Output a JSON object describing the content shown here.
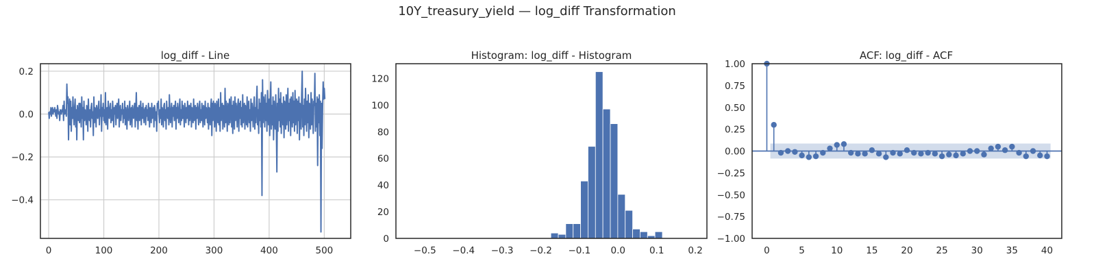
{
  "figure": {
    "suptitle": "10Y_treasury_yield — log_diff Transformation"
  },
  "colors": {
    "primary": "#4c72b0",
    "ci_band": "#4c72b0",
    "grid": "#cccccc",
    "axis": "#262626",
    "text": "#262626"
  },
  "chart_data": [
    {
      "type": "line",
      "title": "log_diff - Line",
      "xlabel": "",
      "ylabel": "",
      "xlim": [
        -15,
        548
      ],
      "ylim": [
        -0.58,
        0.235
      ],
      "xticks": [
        0,
        100,
        200,
        300,
        400,
        500
      ],
      "yticks": [
        -0.4,
        -0.2,
        0.0,
        0.2
      ],
      "ytick_labels": [
        "−0.4",
        "−0.2",
        "0.0",
        "0.2"
      ],
      "grid": true,
      "series": [
        {
          "values": [
            0.01,
            -0.02,
            0.01,
            0.0,
            0.03,
            -0.01,
            0.02,
            0.03,
            0.0,
            0.02,
            0.01,
            0.03,
            0.01,
            -0.01,
            0.02,
            -0.02,
            0.04,
            0.02,
            0.0,
            0.01,
            -0.03,
            0.02,
            0.01,
            0.0,
            0.02,
            0.01,
            0.04,
            -0.03,
            0.06,
            0.0,
            0.01,
            0.02,
            -0.01,
            0.14,
            0.05,
            0.08,
            -0.12,
            0.01,
            0.07,
            -0.05,
            0.06,
            -0.08,
            0.03,
            -0.02,
            0.08,
            0.0,
            -0.05,
            0.03,
            0.07,
            -0.06,
            0.02,
            -0.12,
            0.04,
            0.0,
            -0.03,
            0.05,
            -0.04,
            0.05,
            0.02,
            -0.06,
            0.08,
            -0.02,
            0.03,
            -0.12,
            0.06,
            -0.03,
            0.02,
            0.01,
            -0.05,
            0.04,
            0.02,
            -0.08,
            0.07,
            0.0,
            -0.03,
            0.02,
            -0.06,
            0.03,
            0.05,
            -0.02,
            0.01,
            -0.1,
            0.08,
            -0.04,
            0.03,
            0.02,
            -0.06,
            0.04,
            0.01,
            -0.02,
            0.03,
            0.06,
            -0.05,
            0.02,
            -0.01,
            0.09,
            -0.08,
            0.03,
            -0.01,
            0.05,
            -0.03,
            0.02,
            -0.04,
            0.1,
            -0.05,
            0.02,
            0.03,
            -0.07,
            0.06,
            0.0,
            -0.02,
            0.03,
            0.05,
            -0.04,
            0.02,
            -0.03,
            0.06,
            0.01,
            -0.06,
            0.03,
            0.0,
            0.04,
            -0.05,
            0.02,
            0.05,
            -0.02,
            0.03,
            0.07,
            -0.06,
            0.01,
            0.04,
            -0.03,
            0.02,
            0.0,
            0.05,
            -0.04,
            0.02,
            -0.02,
            0.06,
            -0.05,
            0.03,
            0.0,
            -0.07,
            0.04,
            0.01,
            -0.03,
            0.02,
            0.06,
            -0.05,
            0.01,
            0.03,
            -0.06,
            0.04,
            0.0,
            -0.02,
            0.03,
            0.05,
            -0.06,
            0.02,
            0.1,
            -0.03,
            0.03,
            -0.07,
            0.02,
            0.04,
            -0.03,
            0.01,
            0.06,
            -0.05,
            0.03,
            -0.02,
            0.05,
            0.0,
            -0.04,
            0.02,
            0.03,
            -0.05,
            0.04,
            -0.01,
            0.02,
            -0.03,
            0.05,
            0.01,
            -0.06,
            0.03,
            0.02,
            -0.04,
            0.05,
            -0.02,
            0.0,
            0.03,
            -0.06,
            0.04,
            0.02,
            -0.03,
            0.01,
            -0.08,
            0.05,
            0.03,
            0.06,
            0.0,
            -0.04,
            0.02,
            -0.02,
            0.07,
            -0.05,
            0.03,
            0.01,
            -0.06,
            0.04,
            0.05,
            -0.03,
            0.02,
            -0.07,
            0.06,
            0.01,
            -0.02,
            0.03,
            -0.05,
            0.09,
            0.0,
            -0.04,
            0.02,
            0.05,
            -0.06,
            0.03,
            -0.01,
            0.04,
            -0.03,
            0.02,
            0.06,
            -0.07,
            0.03,
            -0.02,
            0.05,
            0.01,
            -0.04,
            0.03,
            0.07,
            -0.05,
            0.02,
            -0.03,
            0.06,
            -0.02,
            0.04,
            0.0,
            -0.06,
            0.05,
            0.02,
            -0.04,
            0.03,
            -0.02,
            0.06,
            0.01,
            -0.05,
            0.04,
            -0.03,
            0.02,
            0.05,
            -0.06,
            0.03,
            0.0,
            -0.04,
            0.07,
            -0.03,
            0.02,
            0.04,
            -0.07,
            0.03,
            -0.02,
            0.05,
            0.01,
            -0.05,
            0.03,
            0.06,
            -0.04,
            0.02,
            -0.03,
            0.05,
            0.0,
            -0.06,
            0.04,
            0.02,
            -0.05,
            0.06,
            -0.02,
            0.03,
            0.01,
            -0.04,
            0.05,
            -0.07,
            0.03,
            0.02,
            -0.05,
            0.04,
            0.07,
            -0.1,
            0.05,
            -0.03,
            0.06,
            0.02,
            -0.06,
            0.05,
            0.03,
            -0.08,
            0.06,
            0.01,
            -0.04,
            0.07,
            -0.05,
            0.03,
            -0.08,
            0.1,
            -0.03,
            0.02,
            0.05,
            -0.07,
            0.04,
            0.01,
            -0.06,
            0.12,
            -0.04,
            0.06,
            0.0,
            -0.08,
            0.05,
            0.03,
            -0.05,
            0.07,
            -0.04,
            0.02,
            0.08,
            -0.06,
            0.04,
            -0.09,
            0.06,
            0.0,
            -0.07,
            0.08,
            -0.03,
            0.05,
            0.02,
            -0.06,
            0.04,
            0.07,
            -0.08,
            0.05,
            -0.02,
            0.06,
            -0.05,
            0.03,
            -0.06,
            0.09,
            -0.04,
            0.02,
            0.05,
            -0.07,
            0.04,
            0.01,
            -0.05,
            0.08,
            -0.06,
            0.03,
            0.06,
            -0.04,
            0.02,
            -0.08,
            0.07,
            -0.03,
            0.05,
            0.0,
            -0.06,
            0.04,
            0.08,
            -0.07,
            0.03,
            -0.04,
            0.06,
            0.13,
            -0.05,
            0.02,
            -0.09,
            0.07,
            -0.03,
            0.05,
            -0.06,
            0.1,
            -0.38,
            0.16,
            -0.04,
            0.08,
            0.04,
            -0.06,
            0.09,
            -0.03,
            0.05,
            -0.08,
            0.11,
            0.02,
            -0.05,
            0.07,
            -0.1,
            0.06,
            0.15,
            -0.07,
            0.04,
            -0.05,
            0.08,
            -0.12,
            0.06,
            0.01,
            -0.07,
            0.09,
            -0.04,
            -0.27,
            0.05,
            -0.08,
            0.12,
            -0.03,
            0.07,
            -0.06,
            0.1,
            -0.09,
            0.05,
            0.02,
            -0.05,
            0.08,
            -0.11,
            0.06,
            0.04,
            -0.07,
            0.09,
            -0.05,
            0.03,
            0.12,
            -0.08,
            0.05,
            -0.03,
            0.07,
            -0.1,
            0.08,
            0.02,
            -0.06,
            0.1,
            -0.04,
            0.06,
            -0.08,
            0.11,
            -0.05,
            0.04,
            0.07,
            -0.09,
            0.06,
            -0.03,
            0.08,
            -0.12,
            0.05,
            0.03,
            -0.07,
            0.09,
            0.2,
            -0.06,
            0.04,
            -0.1,
            0.07,
            -0.05,
            0.12,
            0.02,
            -0.08,
            0.06,
            -0.04,
            0.09,
            -0.11,
            0.05,
            0.03,
            -0.07,
            0.1,
            -0.05,
            0.07,
            0.0,
            -0.09,
            0.06,
            0.04,
            0.19,
            -0.08,
            0.05,
            -0.06,
            0.08,
            -0.24,
            0.07,
            -0.04,
            0.09,
            -0.1,
            0.06,
            -0.55,
            0.05,
            -0.16,
            0.03,
            0.15,
            0.07,
            0.12,
            0.07
          ]
        }
      ]
    },
    {
      "type": "bar",
      "title": "Histogram: log_diff - Histogram",
      "xlabel": "",
      "ylabel": "",
      "xlim": [
        -0.575,
        0.23
      ],
      "ylim": [
        0,
        131
      ],
      "xticks": [
        -0.5,
        -0.4,
        -0.3,
        -0.2,
        -0.1,
        0.0,
        0.1,
        0.2
      ],
      "xtick_labels": [
        "−0.5",
        "−0.4",
        "−0.3",
        "−0.2",
        "−0.1",
        "0.0",
        "0.1",
        "0.2"
      ],
      "yticks": [
        0,
        20,
        40,
        60,
        80,
        100,
        120
      ],
      "grid": false,
      "bin_start": -0.174,
      "bin_width": 0.01925,
      "values": [
        4,
        3,
        11,
        11,
        43,
        69,
        125,
        97,
        86,
        33,
        21,
        7,
        5,
        2,
        5
      ]
    },
    {
      "type": "stem",
      "title": "ACF: log_diff - ACF",
      "xlabel": "",
      "ylabel": "",
      "xlim": [
        -2.1,
        42.1
      ],
      "ylim": [
        -1.0,
        1.0
      ],
      "xticks": [
        0,
        5,
        10,
        15,
        20,
        25,
        30,
        35,
        40
      ],
      "yticks": [
        -1.0,
        -0.75,
        -0.5,
        -0.25,
        0.0,
        0.25,
        0.5,
        0.75,
        1.0
      ],
      "ytick_labels": [
        "−1.00",
        "−0.75",
        "−0.50",
        "−0.25",
        "0.00",
        "0.25",
        "0.50",
        "0.75",
        "1.00"
      ],
      "grid": false,
      "confidence_band": 0.086,
      "x": [
        0,
        1,
        2,
        3,
        4,
        5,
        6,
        7,
        8,
        9,
        10,
        11,
        12,
        13,
        14,
        15,
        16,
        17,
        18,
        19,
        20,
        21,
        22,
        23,
        24,
        25,
        26,
        27,
        28,
        29,
        30,
        31,
        32,
        33,
        34,
        35,
        36,
        37,
        38,
        39,
        40
      ],
      "values": [
        1.0,
        0.3,
        -0.02,
        0.0,
        -0.01,
        -0.05,
        -0.07,
        -0.06,
        -0.02,
        0.03,
        0.07,
        0.08,
        -0.02,
        -0.03,
        -0.03,
        0.01,
        -0.03,
        -0.07,
        -0.02,
        -0.03,
        0.01,
        -0.02,
        -0.03,
        -0.02,
        -0.03,
        -0.06,
        -0.04,
        -0.05,
        -0.03,
        0.0,
        0.0,
        -0.04,
        0.03,
        0.05,
        0.01,
        0.05,
        -0.02,
        -0.06,
        0.0,
        -0.05,
        -0.06
      ]
    }
  ]
}
